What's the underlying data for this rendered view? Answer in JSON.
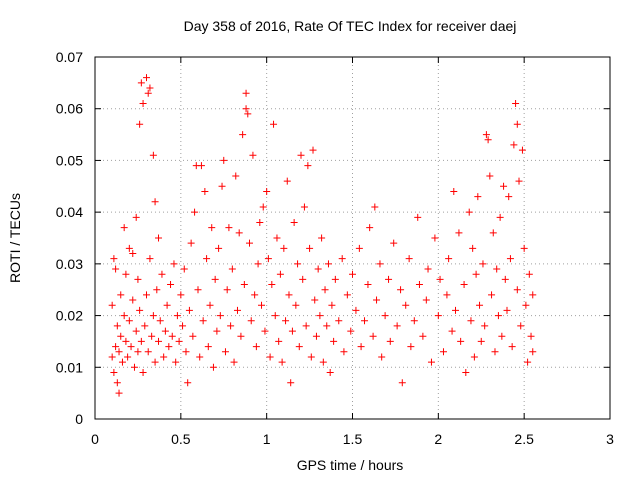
{
  "chart_data": {
    "type": "scatter",
    "title": "Day 358 of 2016, Rate Of TEC Index for receiver daej",
    "xlabel": "GPS time / hours",
    "ylabel": "ROTI / TECUs",
    "xlim": [
      0,
      3
    ],
    "ylim": [
      0,
      0.07
    ],
    "xticks": [
      0,
      0.5,
      1,
      1.5,
      2,
      2.5,
      3
    ],
    "xtick_labels": [
      "0",
      "0.5",
      "1",
      "1.5",
      "2",
      "2.5",
      "3"
    ],
    "yticks": [
      0,
      0.01,
      0.02,
      0.03,
      0.04,
      0.05,
      0.06,
      0.07
    ],
    "ytick_labels": [
      "0",
      "0.01",
      "0.02",
      "0.03",
      "0.04",
      "0.05",
      "0.06",
      "0.07"
    ],
    "grid": true,
    "marker": "+",
    "color": "#ff0000",
    "series": [
      {
        "name": "ROTI",
        "points": [
          [
            0.1,
            0.012
          ],
          [
            0.1,
            0.022
          ],
          [
            0.11,
            0.031
          ],
          [
            0.11,
            0.009
          ],
          [
            0.12,
            0.014
          ],
          [
            0.12,
            0.029
          ],
          [
            0.13,
            0.007
          ],
          [
            0.13,
            0.018
          ],
          [
            0.14,
            0.005
          ],
          [
            0.14,
            0.013
          ],
          [
            0.15,
            0.016
          ],
          [
            0.15,
            0.024
          ],
          [
            0.16,
            0.011
          ],
          [
            0.17,
            0.02
          ],
          [
            0.17,
            0.037
          ],
          [
            0.18,
            0.015
          ],
          [
            0.18,
            0.028
          ],
          [
            0.19,
            0.012
          ],
          [
            0.2,
            0.019
          ],
          [
            0.2,
            0.033
          ],
          [
            0.21,
            0.014
          ],
          [
            0.22,
            0.023
          ],
          [
            0.22,
            0.032
          ],
          [
            0.23,
            0.01
          ],
          [
            0.24,
            0.017
          ],
          [
            0.24,
            0.039
          ],
          [
            0.25,
            0.013
          ],
          [
            0.25,
            0.027
          ],
          [
            0.26,
            0.021
          ],
          [
            0.26,
            0.057
          ],
          [
            0.27,
            0.015
          ],
          [
            0.27,
            0.065
          ],
          [
            0.28,
            0.061
          ],
          [
            0.28,
            0.009
          ],
          [
            0.29,
            0.018
          ],
          [
            0.3,
            0.066
          ],
          [
            0.3,
            0.024
          ],
          [
            0.31,
            0.063
          ],
          [
            0.31,
            0.013
          ],
          [
            0.32,
            0.064
          ],
          [
            0.32,
            0.031
          ],
          [
            0.33,
            0.016
          ],
          [
            0.34,
            0.051
          ],
          [
            0.34,
            0.02
          ],
          [
            0.35,
            0.042
          ],
          [
            0.35,
            0.011
          ],
          [
            0.36,
            0.025
          ],
          [
            0.37,
            0.035
          ],
          [
            0.37,
            0.015
          ],
          [
            0.38,
            0.019
          ],
          [
            0.39,
            0.028
          ],
          [
            0.4,
            0.012
          ],
          [
            0.41,
            0.017
          ],
          [
            0.42,
            0.022
          ],
          [
            0.43,
            0.014
          ],
          [
            0.44,
            0.026
          ],
          [
            0.45,
            0.016
          ],
          [
            0.46,
            0.03
          ],
          [
            0.47,
            0.011
          ],
          [
            0.48,
            0.02
          ],
          [
            0.49,
            0.015
          ],
          [
            0.5,
            0.024
          ],
          [
            0.51,
            0.018
          ],
          [
            0.52,
            0.029
          ],
          [
            0.53,
            0.013
          ],
          [
            0.54,
            0.007
          ],
          [
            0.55,
            0.021
          ],
          [
            0.56,
            0.034
          ],
          [
            0.57,
            0.016
          ],
          [
            0.58,
            0.04
          ],
          [
            0.59,
            0.049
          ],
          [
            0.6,
            0.025
          ],
          [
            0.61,
            0.012
          ],
          [
            0.62,
            0.049
          ],
          [
            0.63,
            0.019
          ],
          [
            0.64,
            0.044
          ],
          [
            0.65,
            0.031
          ],
          [
            0.66,
            0.014
          ],
          [
            0.67,
            0.022
          ],
          [
            0.68,
            0.037
          ],
          [
            0.69,
            0.01
          ],
          [
            0.7,
            0.027
          ],
          [
            0.71,
            0.017
          ],
          [
            0.72,
            0.033
          ],
          [
            0.73,
            0.02
          ],
          [
            0.74,
            0.045
          ],
          [
            0.75,
            0.05
          ],
          [
            0.76,
            0.013
          ],
          [
            0.77,
            0.025
          ],
          [
            0.78,
            0.037
          ],
          [
            0.79,
            0.018
          ],
          [
            0.8,
            0.029
          ],
          [
            0.81,
            0.011
          ],
          [
            0.82,
            0.047
          ],
          [
            0.83,
            0.021
          ],
          [
            0.84,
            0.036
          ],
          [
            0.85,
            0.016
          ],
          [
            0.86,
            0.055
          ],
          [
            0.87,
            0.026
          ],
          [
            0.88,
            0.06
          ],
          [
            0.88,
            0.063
          ],
          [
            0.89,
            0.059
          ],
          [
            0.9,
            0.034
          ],
          [
            0.91,
            0.019
          ],
          [
            0.92,
            0.051
          ],
          [
            0.93,
            0.024
          ],
          [
            0.94,
            0.014
          ],
          [
            0.95,
            0.03
          ],
          [
            0.96,
            0.038
          ],
          [
            0.97,
            0.022
          ],
          [
            0.98,
            0.041
          ],
          [
            0.99,
            0.017
          ],
          [
            1.0,
            0.044
          ],
          [
            1.01,
            0.031
          ],
          [
            1.02,
            0.012
          ],
          [
            1.03,
            0.026
          ],
          [
            1.04,
            0.057
          ],
          [
            1.05,
            0.02
          ],
          [
            1.06,
            0.035
          ],
          [
            1.07,
            0.015
          ],
          [
            1.08,
            0.028
          ],
          [
            1.09,
            0.011
          ],
          [
            1.1,
            0.033
          ],
          [
            1.11,
            0.019
          ],
          [
            1.12,
            0.046
          ],
          [
            1.13,
            0.024
          ],
          [
            1.14,
            0.007
          ],
          [
            1.15,
            0.017
          ],
          [
            1.16,
            0.038
          ],
          [
            1.17,
            0.022
          ],
          [
            1.18,
            0.03
          ],
          [
            1.19,
            0.014
          ],
          [
            1.2,
            0.051
          ],
          [
            1.21,
            0.027
          ],
          [
            1.22,
            0.041
          ],
          [
            1.23,
            0.018
          ],
          [
            1.24,
            0.049
          ],
          [
            1.25,
            0.033
          ],
          [
            1.26,
            0.012
          ],
          [
            1.27,
            0.052
          ],
          [
            1.28,
            0.023
          ],
          [
            1.29,
            0.016
          ],
          [
            1.3,
            0.029
          ],
          [
            1.31,
            0.02
          ],
          [
            1.32,
            0.035
          ],
          [
            1.33,
            0.011
          ],
          [
            1.34,
            0.025
          ],
          [
            1.35,
            0.018
          ],
          [
            1.36,
            0.03
          ],
          [
            1.37,
            0.009
          ],
          [
            1.38,
            0.022
          ],
          [
            1.39,
            0.015
          ],
          [
            1.4,
            0.027
          ],
          [
            1.42,
            0.019
          ],
          [
            1.44,
            0.031
          ],
          [
            1.45,
            0.013
          ],
          [
            1.47,
            0.024
          ],
          [
            1.49,
            0.017
          ],
          [
            1.5,
            0.028
          ],
          [
            1.52,
            0.021
          ],
          [
            1.54,
            0.033
          ],
          [
            1.55,
            0.014
          ],
          [
            1.57,
            0.019
          ],
          [
            1.59,
            0.026
          ],
          [
            1.6,
            0.037
          ],
          [
            1.62,
            0.016
          ],
          [
            1.63,
            0.041
          ],
          [
            1.64,
            0.023
          ],
          [
            1.66,
            0.03
          ],
          [
            1.67,
            0.012
          ],
          [
            1.69,
            0.02
          ],
          [
            1.71,
            0.027
          ],
          [
            1.72,
            0.015
          ],
          [
            1.74,
            0.034
          ],
          [
            1.76,
            0.018
          ],
          [
            1.78,
            0.025
          ],
          [
            1.79,
            0.007
          ],
          [
            1.81,
            0.022
          ],
          [
            1.83,
            0.031
          ],
          [
            1.84,
            0.014
          ],
          [
            1.86,
            0.019
          ],
          [
            1.88,
            0.039
          ],
          [
            1.89,
            0.026
          ],
          [
            1.91,
            0.016
          ],
          [
            1.93,
            0.023
          ],
          [
            1.94,
            0.029
          ],
          [
            1.96,
            0.011
          ],
          [
            1.98,
            0.035
          ],
          [
            2.0,
            0.02
          ],
          [
            2.01,
            0.027
          ],
          [
            2.03,
            0.013
          ],
          [
            2.05,
            0.024
          ],
          [
            2.06,
            0.031
          ],
          [
            2.08,
            0.017
          ],
          [
            2.09,
            0.044
          ],
          [
            2.1,
            0.021
          ],
          [
            2.12,
            0.036
          ],
          [
            2.13,
            0.015
          ],
          [
            2.15,
            0.026
          ],
          [
            2.16,
            0.009
          ],
          [
            2.18,
            0.04
          ],
          [
            2.19,
            0.019
          ],
          [
            2.2,
            0.033
          ],
          [
            2.21,
            0.012
          ],
          [
            2.22,
            0.028
          ],
          [
            2.23,
            0.043
          ],
          [
            2.24,
            0.022
          ],
          [
            2.25,
            0.015
          ],
          [
            2.26,
            0.03
          ],
          [
            2.27,
            0.018
          ],
          [
            2.28,
            0.055
          ],
          [
            2.29,
            0.054
          ],
          [
            2.3,
            0.047
          ],
          [
            2.31,
            0.024
          ],
          [
            2.32,
            0.036
          ],
          [
            2.33,
            0.013
          ],
          [
            2.34,
            0.029
          ],
          [
            2.35,
            0.02
          ],
          [
            2.36,
            0.039
          ],
          [
            2.37,
            0.016
          ],
          [
            2.38,
            0.045
          ],
          [
            2.39,
            0.027
          ],
          [
            2.4,
            0.021
          ],
          [
            2.41,
            0.043
          ],
          [
            2.42,
            0.031
          ],
          [
            2.43,
            0.014
          ],
          [
            2.44,
            0.053
          ],
          [
            2.45,
            0.061
          ],
          [
            2.46,
            0.057
          ],
          [
            2.46,
            0.025
          ],
          [
            2.47,
            0.046
          ],
          [
            2.48,
            0.018
          ],
          [
            2.49,
            0.052
          ],
          [
            2.5,
            0.033
          ],
          [
            2.51,
            0.022
          ],
          [
            2.52,
            0.011
          ],
          [
            2.53,
            0.028
          ],
          [
            2.54,
            0.016
          ],
          [
            2.55,
            0.024
          ],
          [
            2.55,
            0.013
          ]
        ]
      }
    ]
  }
}
